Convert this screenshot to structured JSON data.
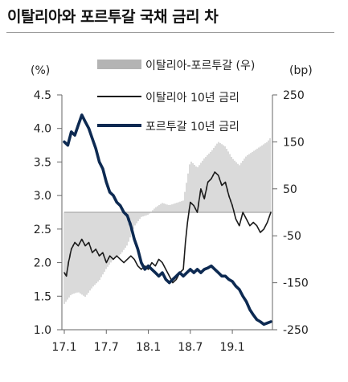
{
  "title": "이탈리아와 포르투갈 국채 금리 차",
  "chart_data": {
    "type": "line",
    "left_unit": "(%)",
    "right_unit": "(bp)",
    "left_axis": {
      "min": 1.0,
      "max": 4.5,
      "ticks": [
        "4.5",
        "4.0",
        "3.5",
        "3.0",
        "2.5",
        "2.0",
        "1.5",
        "1.0"
      ]
    },
    "right_axis": {
      "min": -250,
      "max": 250,
      "ticks": [
        "250",
        "150",
        "50",
        "-50",
        "-150",
        "-250"
      ]
    },
    "x_ticks": [
      "17.1",
      "17.7",
      "18.1",
      "18.7",
      "19.1"
    ],
    "x_tick_values": [
      0,
      6,
      12,
      18,
      24
    ],
    "x_range": [
      0,
      29.5
    ],
    "legend": [
      {
        "label": "이탈리아-포르투갈 (우)",
        "kind": "bar",
        "color": "#b4b4b4"
      },
      {
        "label": "이탈리아 10년 금리",
        "kind": "line",
        "color": "#1a1a1a"
      },
      {
        "label": "포르투갈 10년 금리",
        "kind": "line",
        "color": "#0d2a52"
      }
    ],
    "series": [
      {
        "name": "이탈리아 10년 금리",
        "axis": "left",
        "color": "#1a1a1a",
        "points": [
          [
            0,
            1.85
          ],
          [
            0.3,
            1.8
          ],
          [
            0.6,
            2.0
          ],
          [
            1,
            2.2
          ],
          [
            1.5,
            2.3
          ],
          [
            2,
            2.25
          ],
          [
            2.5,
            2.35
          ],
          [
            3,
            2.25
          ],
          [
            3.5,
            2.3
          ],
          [
            4,
            2.15
          ],
          [
            4.5,
            2.2
          ],
          [
            5,
            2.1
          ],
          [
            5.5,
            2.15
          ],
          [
            6,
            2.0
          ],
          [
            6.5,
            2.1
          ],
          [
            7,
            2.05
          ],
          [
            7.5,
            2.1
          ],
          [
            8,
            2.05
          ],
          [
            8.5,
            2.0
          ],
          [
            9,
            2.05
          ],
          [
            9.5,
            2.1
          ],
          [
            10,
            2.05
          ],
          [
            10.5,
            1.95
          ],
          [
            11,
            1.9
          ],
          [
            11.5,
            1.95
          ],
          [
            12,
            1.9
          ],
          [
            12.5,
            2.0
          ],
          [
            13,
            1.95
          ],
          [
            13.5,
            2.05
          ],
          [
            14,
            2.0
          ],
          [
            14.5,
            1.9
          ],
          [
            15,
            1.8
          ],
          [
            15.5,
            1.7
          ],
          [
            16,
            1.75
          ],
          [
            16.5,
            1.85
          ],
          [
            17,
            1.9
          ],
          [
            17.3,
            2.3
          ],
          [
            17.6,
            2.6
          ],
          [
            18,
            2.9
          ],
          [
            18.5,
            2.85
          ],
          [
            19,
            2.75
          ],
          [
            19.5,
            3.1
          ],
          [
            20,
            2.95
          ],
          [
            20.5,
            3.2
          ],
          [
            21,
            3.25
          ],
          [
            21.5,
            3.35
          ],
          [
            22,
            3.3
          ],
          [
            22.5,
            3.15
          ],
          [
            23,
            3.2
          ],
          [
            23.5,
            3.0
          ],
          [
            24,
            2.85
          ],
          [
            24.5,
            2.65
          ],
          [
            25,
            2.55
          ],
          [
            25.5,
            2.75
          ],
          [
            26,
            2.65
          ],
          [
            26.5,
            2.55
          ],
          [
            27,
            2.6
          ],
          [
            27.5,
            2.55
          ],
          [
            28,
            2.45
          ],
          [
            28.5,
            2.5
          ],
          [
            29,
            2.6
          ],
          [
            29.5,
            2.75
          ]
        ]
      },
      {
        "name": "포르투갈 10년 금리",
        "axis": "left",
        "color": "#0d2a52",
        "points": [
          [
            0,
            3.8
          ],
          [
            0.5,
            3.75
          ],
          [
            1,
            3.95
          ],
          [
            1.5,
            3.9
          ],
          [
            2,
            4.05
          ],
          [
            2.5,
            4.2
          ],
          [
            3,
            4.1
          ],
          [
            3.5,
            4.0
          ],
          [
            4,
            3.85
          ],
          [
            4.5,
            3.7
          ],
          [
            5,
            3.5
          ],
          [
            5.5,
            3.4
          ],
          [
            6,
            3.2
          ],
          [
            6.5,
            3.05
          ],
          [
            7,
            3.0
          ],
          [
            7.5,
            2.9
          ],
          [
            8,
            2.85
          ],
          [
            8.5,
            2.75
          ],
          [
            9,
            2.7
          ],
          [
            9.5,
            2.55
          ],
          [
            10,
            2.35
          ],
          [
            10.5,
            2.2
          ],
          [
            11,
            2.0
          ],
          [
            11.5,
            1.9
          ],
          [
            12,
            1.95
          ],
          [
            12.5,
            1.9
          ],
          [
            13,
            1.85
          ],
          [
            13.5,
            1.8
          ],
          [
            14,
            1.85
          ],
          [
            14.5,
            1.75
          ],
          [
            15,
            1.7
          ],
          [
            15.5,
            1.75
          ],
          [
            16,
            1.8
          ],
          [
            16.5,
            1.85
          ],
          [
            17,
            1.8
          ],
          [
            17.5,
            1.85
          ],
          [
            18,
            1.9
          ],
          [
            18.5,
            1.85
          ],
          [
            19,
            1.9
          ],
          [
            19.5,
            1.85
          ],
          [
            20,
            1.9
          ],
          [
            20.5,
            1.92
          ],
          [
            21,
            1.95
          ],
          [
            21.5,
            1.9
          ],
          [
            22,
            1.85
          ],
          [
            22.5,
            1.8
          ],
          [
            23,
            1.8
          ],
          [
            23.5,
            1.75
          ],
          [
            24,
            1.72
          ],
          [
            24.5,
            1.65
          ],
          [
            25,
            1.6
          ],
          [
            25.5,
            1.5
          ],
          [
            26,
            1.42
          ],
          [
            26.5,
            1.3
          ],
          [
            27,
            1.22
          ],
          [
            27.5,
            1.15
          ],
          [
            28,
            1.12
          ],
          [
            28.5,
            1.08
          ],
          [
            29,
            1.1
          ],
          [
            29.5,
            1.12
          ]
        ]
      },
      {
        "name": "이탈리아-포르투갈 (우)",
        "axis": "right",
        "kind": "bar",
        "color": "#b4b4b4",
        "points": [
          [
            0,
            -195
          ],
          [
            1,
            -175
          ],
          [
            2,
            -170
          ],
          [
            3,
            -180
          ],
          [
            4,
            -160
          ],
          [
            5,
            -145
          ],
          [
            6,
            -120
          ],
          [
            7,
            -100
          ],
          [
            8,
            -90
          ],
          [
            9,
            -70
          ],
          [
            10,
            -30
          ],
          [
            11,
            -10
          ],
          [
            12,
            -5
          ],
          [
            13,
            10
          ],
          [
            14,
            20
          ],
          [
            15,
            15
          ],
          [
            16,
            20
          ],
          [
            17,
            25
          ],
          [
            18,
            110
          ],
          [
            19,
            95
          ],
          [
            20,
            115
          ],
          [
            21,
            130
          ],
          [
            22,
            150
          ],
          [
            23,
            140
          ],
          [
            24,
            115
          ],
          [
            25,
            100
          ],
          [
            26,
            120
          ],
          [
            27,
            130
          ],
          [
            28,
            140
          ],
          [
            29,
            150
          ],
          [
            29.5,
            160
          ]
        ]
      }
    ]
  }
}
